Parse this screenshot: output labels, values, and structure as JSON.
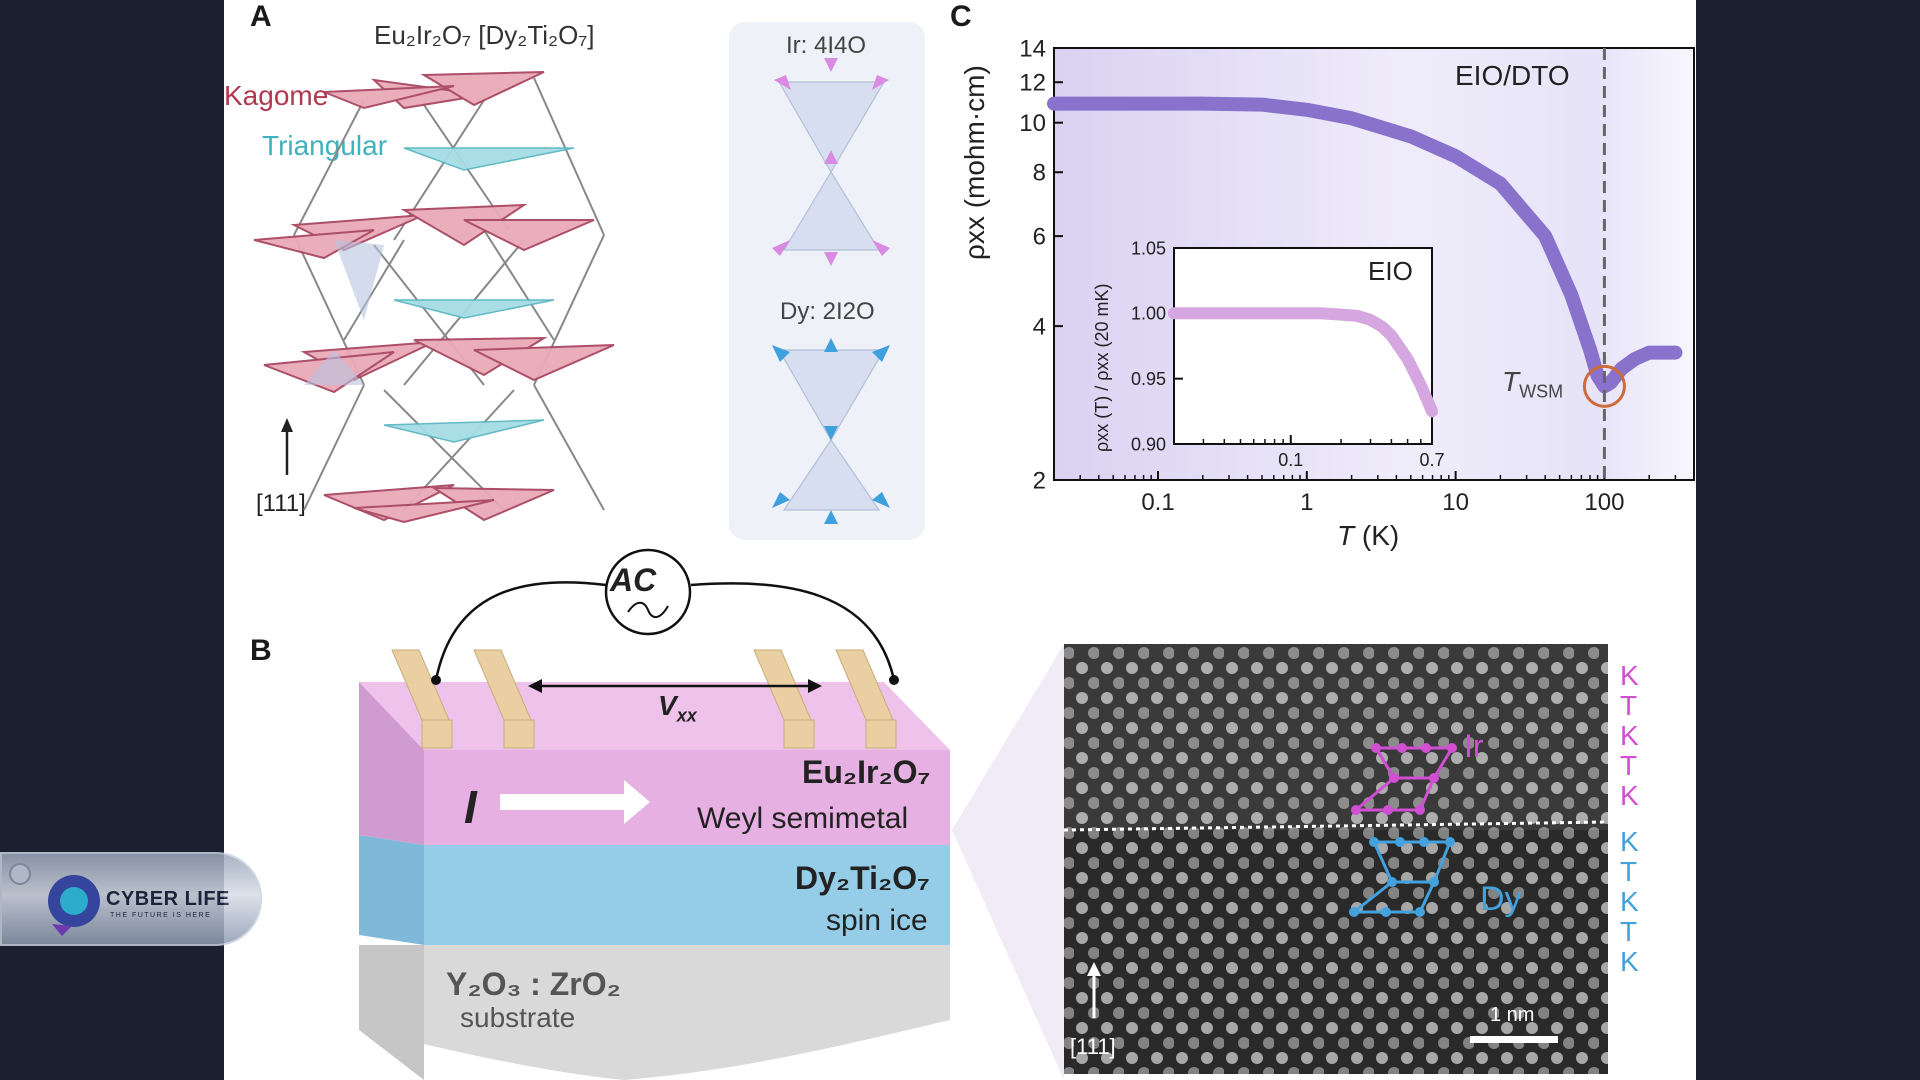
{
  "panels": {
    "a": {
      "letter": "A",
      "compound": "Eu₂Ir₂O₇ [Dy₂Ti₂O₇]",
      "kagome_label": "Kagome",
      "triangular_label": "Triangular",
      "direction_label": "[111]",
      "ir_label": "Ir: 4I4O",
      "dy_label": "Dy: 2I2O",
      "colors": {
        "kagome": "#e7a3b3",
        "triangular": "#9fdbe5",
        "ir_arrow": "#d68be0",
        "dy_arrow": "#3ea0dc"
      }
    },
    "b": {
      "letter": "B",
      "ac_label": "AC",
      "vxx_label": "V",
      "vxx_sub": "xx",
      "current_label": "I",
      "top_layer_name": "Eu₂Ir₂O₇",
      "top_layer_desc": "Weyl semimetal",
      "mid_layer_name": "Dy₂Ti₂O₇",
      "mid_layer_desc": "spin ice",
      "substrate_name": "Y₂O₃ : ZrO₂",
      "substrate_desc": "substrate",
      "stem_ir_label": "Ir",
      "stem_dy_label": "Dy",
      "stem_direction": "[111]",
      "scale_bar": "1 nm",
      "sequence_top": [
        "K",
        "T",
        "K",
        "T",
        "K"
      ],
      "sequence_bottom": [
        "K",
        "T",
        "K",
        "T",
        "K"
      ],
      "colors": {
        "eio": "#e9a6df",
        "dto": "#93cce9",
        "substrate": "#e3e3e3",
        "electrode": "#e9cf9f"
      }
    },
    "c": {
      "letter": "C",
      "sample_label": "EIO/DTO",
      "twsm_label": "T",
      "twsm_sub": "WSM",
      "xlabel_var": "T",
      "xlabel_unit": " (K)",
      "ylabel": "ρxx (mohm·cm)",
      "inset_label": "EIO",
      "inset_ylabel": "ρxx (T) / ρxx (20 mK)"
    }
  },
  "chart_data": [
    {
      "type": "line",
      "title": "EIO/DTO",
      "xlabel": "T (K)",
      "ylabel": "ρxx (mohm·cm)",
      "xscale": "log",
      "yscale": "log",
      "xlim": [
        0.02,
        400
      ],
      "ylim": [
        2,
        14
      ],
      "xticks": [
        0.1,
        1,
        10,
        100
      ],
      "xtick_labels": [
        "0.1",
        "1",
        "10",
        "100"
      ],
      "yticks": [
        2,
        4,
        6,
        8,
        10,
        12,
        14
      ],
      "ytick_labels": [
        "2",
        "4",
        "6",
        "8",
        "10",
        "12",
        "14"
      ],
      "markers": {
        "T_WSM": 100
      },
      "series": [
        {
          "color": "#8872cc",
          "x": [
            0.02,
            0.05,
            0.1,
            0.2,
            0.5,
            1,
            2,
            5,
            10,
            20,
            40,
            60,
            80,
            90,
            100,
            110,
            130,
            160,
            200,
            300
          ],
          "y": [
            10.9,
            10.9,
            10.9,
            10.9,
            10.85,
            10.6,
            10.2,
            9.4,
            8.6,
            7.6,
            6.0,
            4.6,
            3.6,
            3.2,
            3.05,
            3.1,
            3.3,
            3.45,
            3.55,
            3.55
          ]
        }
      ]
    },
    {
      "type": "line",
      "title": "EIO",
      "xlabel": "",
      "ylabel": "ρxx (T) / ρxx (20 mK)",
      "xscale": "log",
      "xlim": [
        0.02,
        0.7
      ],
      "ylim": [
        0.9,
        1.05
      ],
      "xticks": [
        0.1,
        0.7
      ],
      "xtick_labels": [
        "0.1",
        "0.7"
      ],
      "yticks": [
        0.9,
        0.95,
        1.0,
        1.05
      ],
      "ytick_labels": [
        "0.90",
        "0.95",
        "1.00",
        "1.05"
      ],
      "series": [
        {
          "color": "#d6a6e0",
          "x": [
            0.02,
            0.05,
            0.1,
            0.15,
            0.2,
            0.25,
            0.3,
            0.35,
            0.4,
            0.5,
            0.6,
            0.7
          ],
          "y": [
            1.0,
            1.0,
            1.0,
            1.0,
            0.999,
            0.998,
            0.995,
            0.99,
            0.983,
            0.965,
            0.945,
            0.925
          ]
        }
      ]
    }
  ],
  "watermark": {
    "title": "CYBER LIFE",
    "tagline": "THE FUTURE IS HERE"
  }
}
